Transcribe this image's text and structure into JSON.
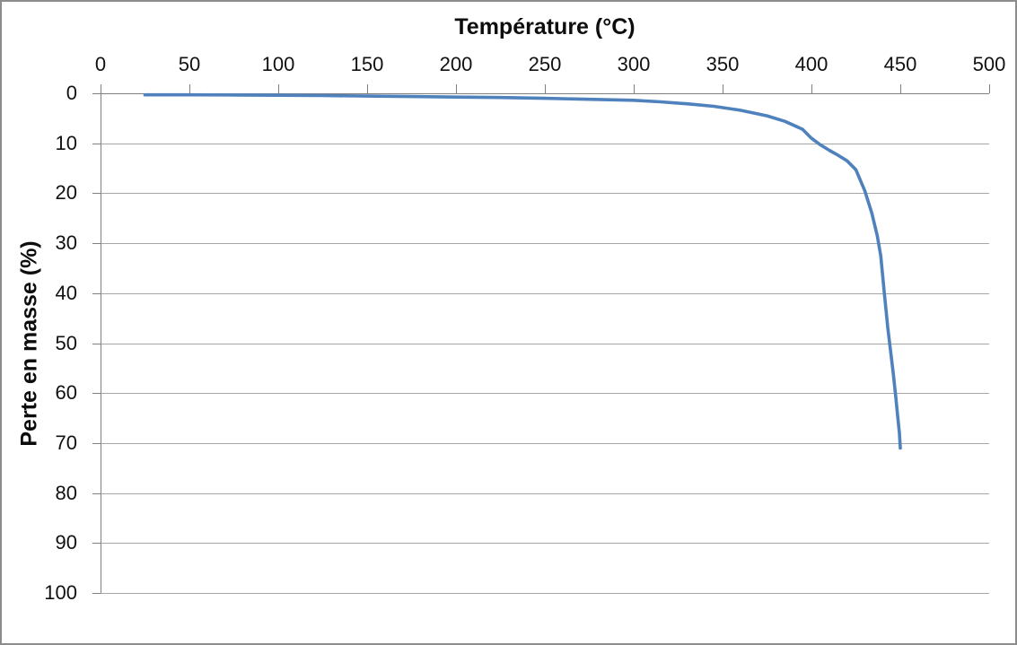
{
  "chart_data": {
    "type": "line",
    "title": "",
    "xlabel": "Température (°C)",
    "ylabel": "Perte en masse (%)",
    "xlim": [
      0,
      500
    ],
    "ylim": [
      0,
      100
    ],
    "x_axis_position": "top",
    "y_axis_inverted": true,
    "grid": "horizontal-major",
    "legend_position": "none",
    "x_ticks": [
      0,
      50,
      100,
      150,
      200,
      250,
      300,
      350,
      400,
      450,
      500
    ],
    "y_ticks": [
      0,
      10,
      20,
      30,
      40,
      50,
      60,
      70,
      80,
      90,
      100
    ],
    "series": [
      {
        "name": "Perte en masse",
        "color": "#4F81BD",
        "x": [
          25,
          50,
          75,
          100,
          125,
          150,
          175,
          200,
          225,
          250,
          275,
          300,
          315,
          330,
          345,
          360,
          375,
          385,
          395,
          400,
          405,
          410,
          415,
          420,
          425,
          430,
          434,
          437,
          439,
          441,
          443,
          444.5,
          446,
          447.5,
          448.5,
          449.5,
          450
        ],
        "y": [
          0.3,
          0.3,
          0.35,
          0.4,
          0.45,
          0.55,
          0.65,
          0.75,
          0.85,
          1.0,
          1.2,
          1.4,
          1.7,
          2.1,
          2.6,
          3.4,
          4.5,
          5.6,
          7.2,
          9.0,
          10.3,
          11.4,
          12.4,
          13.5,
          15.3,
          19.5,
          24.0,
          28.5,
          32.5,
          40.0,
          47.0,
          51.5,
          56.0,
          61.0,
          64.5,
          68.0,
          71.0
        ]
      }
    ],
    "colors": {
      "line": "#4F81BD",
      "gridline": "#A6A6A6",
      "axis_line": "#808080",
      "tick_label": "#111111",
      "axis_title": "#0D0D0D",
      "background": "#FFFFFF",
      "frame_border": "#8C8C8C"
    }
  }
}
